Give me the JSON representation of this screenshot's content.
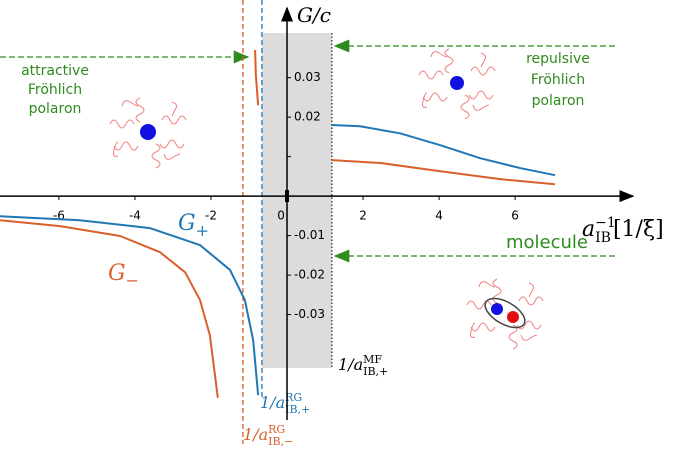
{
  "chart_data": {
    "type": "line",
    "ylabel": "G/c",
    "xlabel": {
      "base": "a",
      "sup": "−1",
      "sub": "IB",
      "unit": "[1/ξ]"
    },
    "xlim": [
      -7.55,
      8.89
    ],
    "ylim": [
      -0.0567,
      0.0446
    ],
    "xticks": [
      -6,
      -4,
      -2,
      0,
      2,
      4,
      6
    ],
    "yticks": [
      0.03,
      0.02,
      {
        "value": 0.01,
        "label": null
      },
      -0.01,
      -0.02,
      -0.03
    ],
    "shaded": [
      -0.66,
      1.18
    ],
    "asymptotes": [
      {
        "x": -1.16,
        "color": "#d95f2b",
        "style": "dashed",
        "label": {
          "pre": "1/a",
          "sup": "RG",
          "sub": "IB,−"
        }
      },
      {
        "x": -0.66,
        "color": "#1f77b4",
        "style": "dashed",
        "label": {
          "pre": "1/a",
          "sup": "RG",
          "sub": "IB,+"
        }
      },
      {
        "x": 1.18,
        "color": "#333333",
        "style": "dotted",
        "label": {
          "pre": "1/a",
          "sup": "MF",
          "sub": "IB,+"
        }
      }
    ],
    "series": [
      {
        "name": "G",
        "name_sub": "+",
        "color": "#1f77b4",
        "x": [
          -7.55,
          -5.45,
          -3.61,
          -2.29,
          -1.5,
          -1.11,
          -0.89,
          -0.76,
          null,
          1.18,
          1.92,
          2.97,
          4.03,
          5.08,
          6.13,
          7.05
        ],
        "values": [
          -0.0051,
          -0.0061,
          -0.0081,
          -0.0124,
          -0.0187,
          -0.0263,
          -0.0365,
          -0.0504,
          null,
          0.018,
          0.0177,
          0.0159,
          0.0129,
          0.0096,
          0.0071,
          0.0053
        ]
      },
      {
        "name": "G",
        "name_sub": "−",
        "color": "#d95f2b",
        "x": [
          -7.55,
          -5.97,
          -4.39,
          -3.34,
          -2.68,
          -2.29,
          -2.03,
          -1.82,
          null,
          -0.84,
          -0.82,
          -0.76,
          null,
          1.18,
          2.45,
          4.03,
          5.61,
          7.05
        ],
        "values": [
          -0.0061,
          -0.0076,
          -0.0101,
          -0.0142,
          -0.0193,
          -0.0263,
          -0.0352,
          -0.0511,
          null,
          0.037,
          0.0306,
          0.023,
          null,
          0.0091,
          0.0084,
          0.0063,
          0.0043,
          0.003
        ]
      }
    ],
    "annotations": {
      "attractive": [
        "attractive",
        "Fröhlich",
        "polaron"
      ],
      "repulsive": [
        "repulsive",
        "Fröhlich",
        "polaron"
      ],
      "molecule": "molecule"
    }
  }
}
